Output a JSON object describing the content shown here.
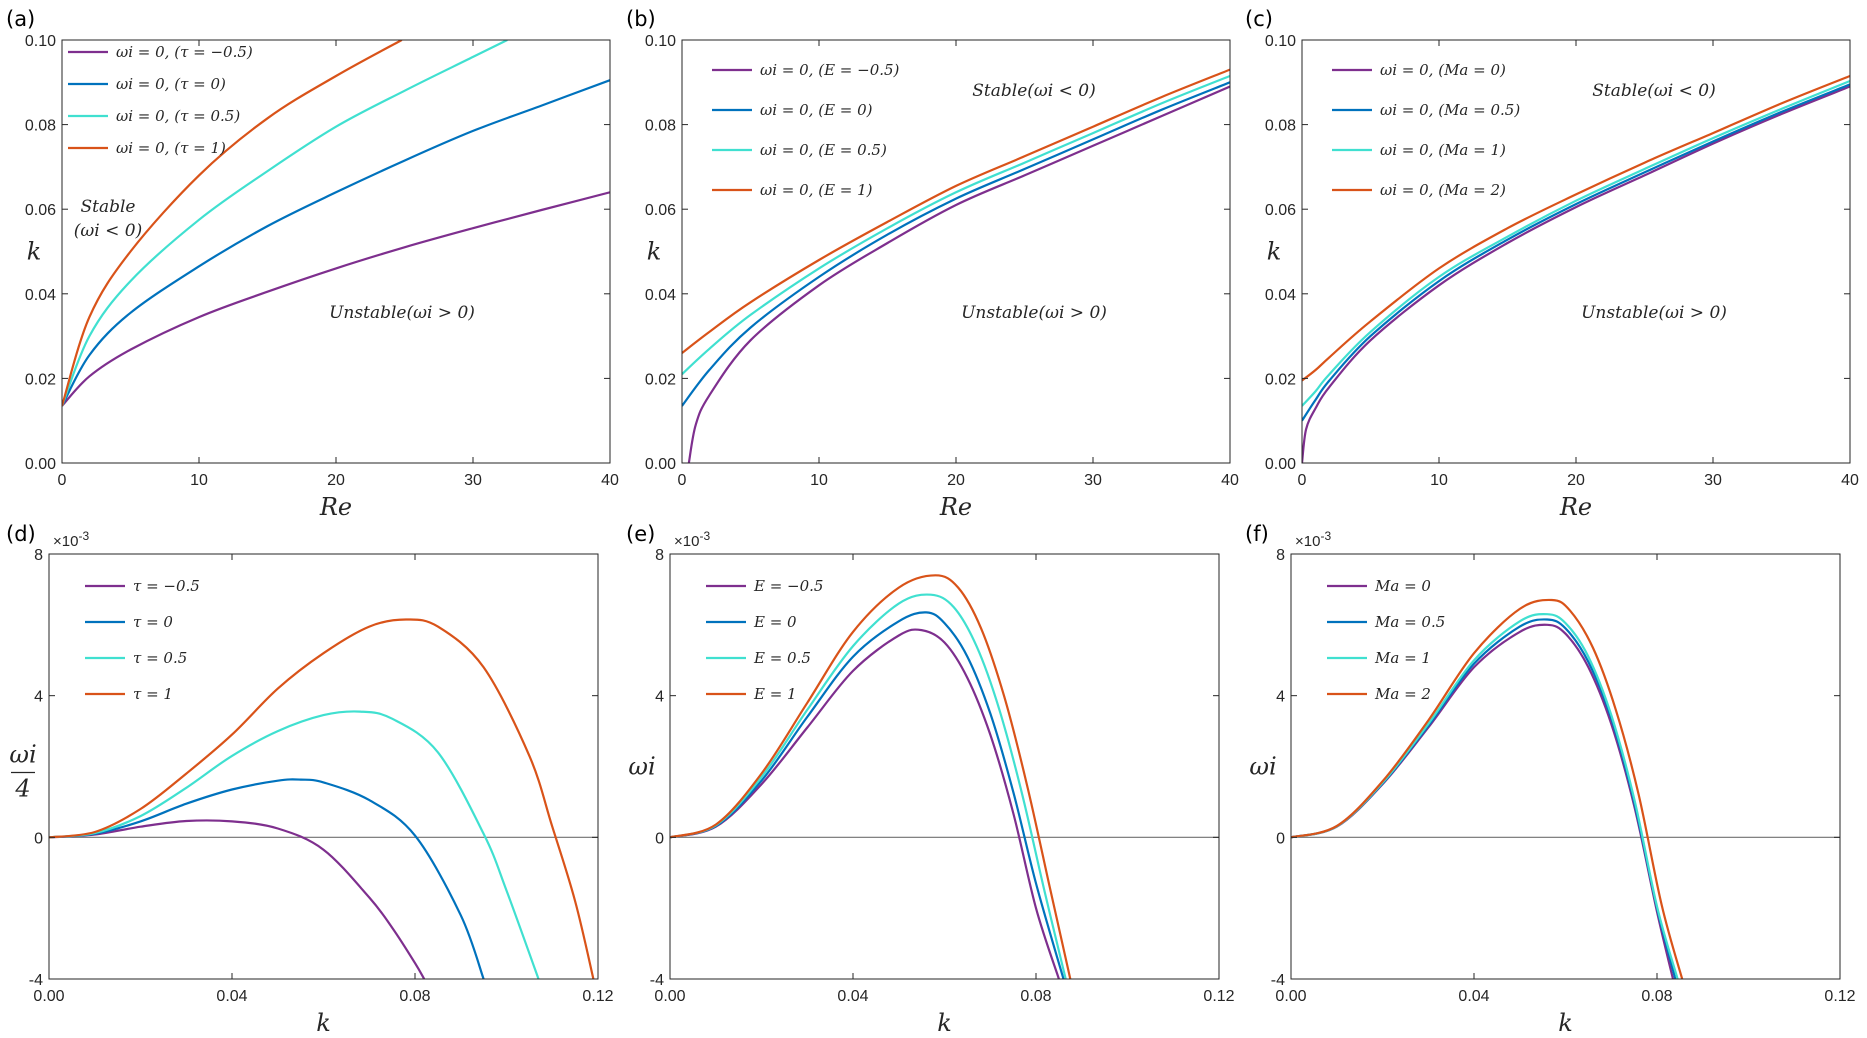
{
  "colors": {
    "purple": "#7E2F8E",
    "blue": "#0072BD",
    "cyan": "#40E0D0",
    "orange": "#D95319",
    "axis": "#262626",
    "zero_line": "#707070"
  },
  "exponent_label": "×10-3",
  "chart_data": [
    {
      "panel": "(a)",
      "type": "line",
      "xlabel": "Re",
      "ylabel": "k",
      "xlim": [
        0,
        40
      ],
      "ylim": [
        0,
        0.1
      ],
      "xticks": [
        "0",
        "10",
        "20",
        "30",
        "40"
      ],
      "yticks": [
        "0.00",
        "0.02",
        "0.04",
        "0.06",
        "0.08",
        "0.10"
      ],
      "legend_location": "top-left",
      "annotations": [
        "Stable",
        "(ωi < 0)",
        "Unstable(ωi > 0)"
      ],
      "series": [
        {
          "name": "ωi = 0, (τ = −0.5)",
          "color": "purple",
          "x": [
            0,
            2,
            5,
            10,
            15,
            20,
            25,
            30,
            35,
            40
          ],
          "values": [
            0.0135,
            0.0205,
            0.0268,
            0.0345,
            0.0405,
            0.046,
            0.051,
            0.0555,
            0.0598,
            0.064
          ]
        },
        {
          "name": "ωi = 0, (τ = 0)",
          "color": "blue",
          "x": [
            0,
            2,
            5,
            10,
            15,
            20,
            25,
            30,
            35,
            40
          ],
          "values": [
            0.0135,
            0.0255,
            0.0355,
            0.0465,
            0.056,
            0.064,
            0.0715,
            0.0785,
            0.0845,
            0.0905
          ]
        },
        {
          "name": "ωi = 0, (τ = 0.5)",
          "color": "cyan",
          "x": [
            0,
            2,
            5,
            10,
            15,
            20,
            25,
            30,
            32.5
          ],
          "values": [
            0.0135,
            0.03,
            0.043,
            0.0575,
            0.069,
            0.0795,
            0.088,
            0.096,
            0.1
          ]
        },
        {
          "name": "ωi = 0, (τ = 1)",
          "color": "orange",
          "x": [
            0,
            2,
            5,
            10,
            15,
            20,
            24.8
          ],
          "values": [
            0.0135,
            0.0345,
            0.05,
            0.068,
            0.0815,
            0.0915,
            0.1
          ]
        }
      ]
    },
    {
      "panel": "(b)",
      "type": "line",
      "xlabel": "Re",
      "ylabel": "k",
      "xlim": [
        0,
        40
      ],
      "ylim": [
        0,
        0.1
      ],
      "xticks": [
        "0",
        "10",
        "20",
        "30",
        "40"
      ],
      "yticks": [
        "0.00",
        "0.02",
        "0.04",
        "0.06",
        "0.08",
        "0.10"
      ],
      "legend_location": "top-left",
      "annotations": [
        "Stable(ωi < 0)",
        "Unstable(ωi > 0)"
      ],
      "series": [
        {
          "name": "ωi = 0, (E = −0.5)",
          "color": "purple",
          "x": [
            0.5,
            1,
            2,
            5,
            10,
            15,
            20,
            25,
            30,
            35,
            40
          ],
          "values": [
            0.0,
            0.009,
            0.016,
            0.029,
            0.042,
            0.052,
            0.061,
            0.068,
            0.075,
            0.082,
            0.089
          ]
        },
        {
          "name": "ωi = 0, (E = 0)",
          "color": "blue",
          "x": [
            0,
            2,
            5,
            10,
            15,
            20,
            25,
            30,
            35,
            40
          ],
          "values": [
            0.0135,
            0.022,
            0.032,
            0.044,
            0.054,
            0.0625,
            0.0695,
            0.0765,
            0.0835,
            0.09
          ]
        },
        {
          "name": "ωi = 0, (E = 0.5)",
          "color": "cyan",
          "x": [
            0,
            2,
            5,
            10,
            15,
            20,
            25,
            30,
            35,
            40
          ],
          "values": [
            0.021,
            0.027,
            0.035,
            0.046,
            0.0555,
            0.064,
            0.071,
            0.078,
            0.085,
            0.0915
          ]
        },
        {
          "name": "ωi = 0, (E = 1)",
          "color": "orange",
          "x": [
            0,
            2,
            5,
            10,
            15,
            20,
            25,
            30,
            35,
            40
          ],
          "values": [
            0.026,
            0.031,
            0.038,
            0.048,
            0.057,
            0.0655,
            0.0725,
            0.0795,
            0.0865,
            0.093
          ]
        }
      ]
    },
    {
      "panel": "(c)",
      "type": "line",
      "xlabel": "Re",
      "ylabel": "k",
      "xlim": [
        0,
        40
      ],
      "ylim": [
        0,
        0.1
      ],
      "xticks": [
        "0",
        "10",
        "20",
        "30",
        "40"
      ],
      "yticks": [
        "0.00",
        "0.02",
        "0.04",
        "0.06",
        "0.08",
        "0.10"
      ],
      "legend_location": "top-left",
      "annotations": [
        "Stable(ωi < 0)",
        "Unstable(ωi > 0)"
      ],
      "series": [
        {
          "name": "ωi = 0, (Ma = 0)",
          "color": "purple",
          "x": [
            0,
            0.3,
            1,
            2,
            5,
            10,
            15,
            20,
            25,
            30,
            35,
            40
          ],
          "values": [
            0.0,
            0.008,
            0.013,
            0.018,
            0.029,
            0.042,
            0.052,
            0.0605,
            0.068,
            0.0755,
            0.0825,
            0.089
          ]
        },
        {
          "name": "ωi = 0, (Ma = 0.5)",
          "color": "blue",
          "x": [
            0,
            1,
            2,
            5,
            10,
            15,
            20,
            25,
            30,
            35,
            40
          ],
          "values": [
            0.01,
            0.015,
            0.0195,
            0.03,
            0.043,
            0.0528,
            0.0612,
            0.0687,
            0.076,
            0.083,
            0.0895
          ]
        },
        {
          "name": "ωi = 0, (Ma = 1)",
          "color": "cyan",
          "x": [
            0,
            1,
            2,
            5,
            10,
            15,
            20,
            25,
            30,
            35,
            40
          ],
          "values": [
            0.0135,
            0.017,
            0.021,
            0.031,
            0.044,
            0.0535,
            0.062,
            0.0695,
            0.0768,
            0.0837,
            0.0903
          ]
        },
        {
          "name": "ωi = 0, (Ma = 2)",
          "color": "orange",
          "x": [
            0,
            1,
            2,
            5,
            10,
            15,
            20,
            25,
            30,
            35,
            40
          ],
          "values": [
            0.0195,
            0.022,
            0.025,
            0.0335,
            0.046,
            0.0555,
            0.0635,
            0.071,
            0.078,
            0.085,
            0.0915
          ]
        }
      ]
    },
    {
      "panel": "(d)",
      "type": "line",
      "xlabel": "k",
      "ylabel": "ωi / 4",
      "xlim": [
        0,
        0.12
      ],
      "ylim": [
        -4,
        8
      ],
      "y_multiplier": "×10-3",
      "xticks": [
        "0.00",
        "0.04",
        "0.08",
        "0.12"
      ],
      "yticks": [
        "-4",
        "0",
        "4",
        "8"
      ],
      "zero_line": true,
      "legend_location": "top-left",
      "series": [
        {
          "name": "τ = −0.5",
          "color": "purple",
          "x": [
            0,
            0.01,
            0.02,
            0.03,
            0.04,
            0.05,
            0.06,
            0.07,
            0.075,
            0.08,
            0.082
          ],
          "values": [
            0,
            0.08,
            0.3,
            0.46,
            0.45,
            0.25,
            -0.35,
            -1.7,
            -2.55,
            -3.55,
            -4.0
          ]
        },
        {
          "name": "τ = 0",
          "color": "blue",
          "x": [
            0,
            0.01,
            0.02,
            0.03,
            0.04,
            0.05,
            0.055,
            0.06,
            0.07,
            0.08,
            0.09,
            0.095
          ],
          "values": [
            0,
            0.1,
            0.45,
            0.95,
            1.35,
            1.6,
            1.63,
            1.55,
            1.05,
            0.05,
            -2.2,
            -4.0
          ]
        },
        {
          "name": "τ = 0.5",
          "color": "cyan",
          "x": [
            0,
            0.01,
            0.02,
            0.03,
            0.04,
            0.05,
            0.06,
            0.068,
            0.075,
            0.085,
            0.095,
            0.1,
            0.107
          ],
          "values": [
            0,
            0.12,
            0.6,
            1.4,
            2.3,
            3.0,
            3.45,
            3.55,
            3.35,
            2.4,
            0.1,
            -1.5,
            -4.0
          ]
        },
        {
          "name": "τ = 1",
          "color": "orange",
          "x": [
            0,
            0.01,
            0.02,
            0.03,
            0.04,
            0.05,
            0.06,
            0.07,
            0.078,
            0.085,
            0.095,
            0.105,
            0.11,
            0.115,
            0.119
          ],
          "values": [
            0,
            0.15,
            0.8,
            1.8,
            2.9,
            4.2,
            5.2,
            5.95,
            6.15,
            5.95,
            4.8,
            2.3,
            0.3,
            -1.8,
            -4.0
          ]
        }
      ]
    },
    {
      "panel": "(e)",
      "type": "line",
      "xlabel": "k",
      "ylabel": "ωi",
      "xlim": [
        0,
        0.12
      ],
      "ylim": [
        -4,
        8
      ],
      "y_multiplier": "×10-3",
      "xticks": [
        "0.00",
        "0.04",
        "0.08",
        "0.12"
      ],
      "yticks": [
        "-4",
        "0",
        "4",
        "8"
      ],
      "zero_line": true,
      "legend_location": "top-left",
      "series": [
        {
          "name": "E = −0.5",
          "color": "purple",
          "x": [
            0,
            0.01,
            0.02,
            0.03,
            0.04,
            0.05,
            0.055,
            0.06,
            0.065,
            0.07,
            0.075,
            0.08,
            0.085
          ],
          "values": [
            0,
            0.3,
            1.5,
            3.1,
            4.7,
            5.7,
            5.85,
            5.5,
            4.5,
            2.9,
            0.7,
            -2.0,
            -4.0
          ]
        },
        {
          "name": "E = 0",
          "color": "blue",
          "x": [
            0,
            0.01,
            0.02,
            0.03,
            0.04,
            0.05,
            0.056,
            0.06,
            0.065,
            0.07,
            0.075,
            0.08,
            0.086
          ],
          "values": [
            0,
            0.32,
            1.6,
            3.4,
            5.1,
            6.1,
            6.35,
            6.05,
            5.1,
            3.5,
            1.3,
            -1.3,
            -4.0
          ]
        },
        {
          "name": "E = 0.5",
          "color": "cyan",
          "x": [
            0,
            0.01,
            0.02,
            0.03,
            0.04,
            0.05,
            0.057,
            0.062,
            0.067,
            0.072,
            0.077,
            0.082,
            0.0865
          ],
          "values": [
            0,
            0.34,
            1.7,
            3.6,
            5.4,
            6.6,
            6.85,
            6.5,
            5.4,
            3.6,
            1.2,
            -1.6,
            -4.0
          ]
        },
        {
          "name": "E = 1",
          "color": "orange",
          "x": [
            0,
            0.01,
            0.02,
            0.03,
            0.04,
            0.05,
            0.058,
            0.063,
            0.068,
            0.073,
            0.078,
            0.083,
            0.0875
          ],
          "values": [
            0,
            0.36,
            1.8,
            3.8,
            5.8,
            7.05,
            7.4,
            7.05,
            5.9,
            4.0,
            1.5,
            -1.4,
            -4.0
          ]
        }
      ]
    },
    {
      "panel": "(f)",
      "type": "line",
      "xlabel": "k",
      "ylabel": "ωi",
      "xlim": [
        0,
        0.12
      ],
      "ylim": [
        -4,
        8
      ],
      "y_multiplier": "×10-3",
      "xticks": [
        "0.00",
        "0.04",
        "0.08",
        "0.12"
      ],
      "yticks": [
        "-4",
        "0",
        "4",
        "8"
      ],
      "zero_line": true,
      "legend_location": "top-left",
      "series": [
        {
          "name": "Ma = 0",
          "color": "purple",
          "x": [
            0,
            0.01,
            0.02,
            0.03,
            0.04,
            0.05,
            0.056,
            0.06,
            0.065,
            0.07,
            0.075,
            0.08,
            0.0835
          ],
          "values": [
            0,
            0.3,
            1.5,
            3.1,
            4.8,
            5.8,
            6.0,
            5.75,
            4.8,
            3.2,
            0.9,
            -2.1,
            -4.0
          ]
        },
        {
          "name": "Ma = 0.5",
          "color": "blue",
          "x": [
            0,
            0.01,
            0.02,
            0.03,
            0.04,
            0.05,
            0.056,
            0.06,
            0.065,
            0.07,
            0.075,
            0.08,
            0.084
          ],
          "values": [
            0,
            0.31,
            1.52,
            3.15,
            4.9,
            5.95,
            6.15,
            5.9,
            4.95,
            3.35,
            1.0,
            -2.0,
            -4.0
          ]
        },
        {
          "name": "Ma = 1",
          "color": "cyan",
          "x": [
            0,
            0.01,
            0.02,
            0.03,
            0.04,
            0.05,
            0.056,
            0.06,
            0.065,
            0.07,
            0.075,
            0.08,
            0.0845
          ],
          "values": [
            0,
            0.31,
            1.54,
            3.2,
            5.0,
            6.1,
            6.3,
            6.05,
            5.1,
            3.45,
            1.1,
            -1.95,
            -4.0
          ]
        },
        {
          "name": "Ma = 2",
          "color": "orange",
          "x": [
            0,
            0.01,
            0.02,
            0.03,
            0.04,
            0.05,
            0.057,
            0.061,
            0.066,
            0.071,
            0.076,
            0.081,
            0.0855
          ],
          "values": [
            0,
            0.32,
            1.58,
            3.3,
            5.2,
            6.45,
            6.7,
            6.4,
            5.35,
            3.6,
            1.2,
            -1.9,
            -4.0
          ]
        }
      ]
    }
  ]
}
